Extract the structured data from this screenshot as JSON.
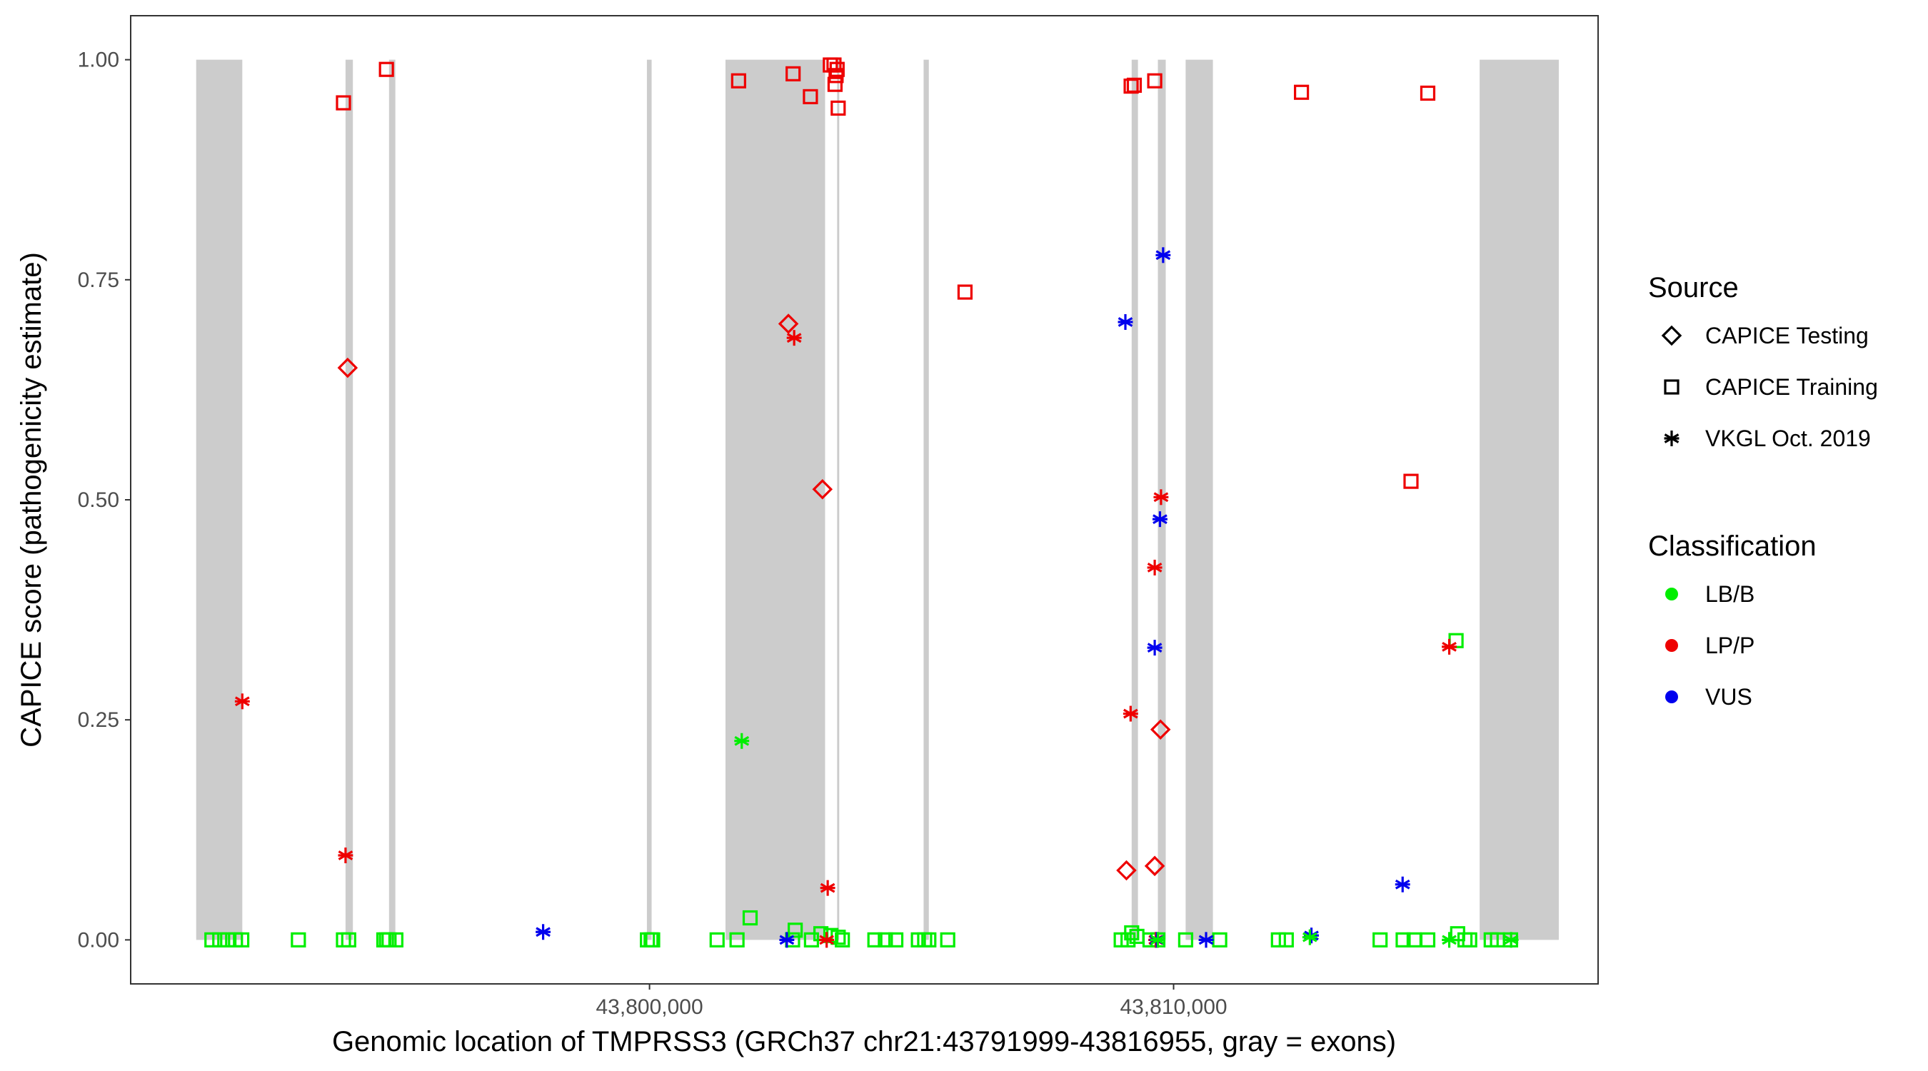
{
  "chart_data": {
    "type": "scatter",
    "xlabel": "Genomic location of TMPRSS3 (GRCh37 chr21:43791999-43816955, gray = exons)",
    "ylabel": "CAPICE score (pathogenicity estimate)",
    "xlim": [
      43790100,
      43818100
    ],
    "ylim": [
      -0.05,
      1.05
    ],
    "x_ticks": [
      43800000,
      43810000
    ],
    "x_tick_labels": [
      "43,800,000",
      "43,810,000"
    ],
    "y_ticks": [
      0,
      0.25,
      0.5,
      0.75,
      1.0
    ],
    "y_tick_labels": [
      "0.00",
      "0.25",
      "0.50",
      "0.75",
      "1.00"
    ],
    "grid": false,
    "legend_position": "right",
    "exons": [
      [
        43791350,
        43792230
      ],
      [
        43794200,
        43794340
      ],
      [
        43795030,
        43795150
      ],
      [
        43799950,
        43800040
      ],
      [
        43801450,
        43803350
      ],
      [
        43803580,
        43803620
      ],
      [
        43805230,
        43805330
      ],
      [
        43809200,
        43809320
      ],
      [
        43809700,
        43809850
      ],
      [
        43810230,
        43810750
      ],
      [
        43815840,
        43817350
      ]
    ],
    "colors": {
      "LB/B": "#00ee00",
      "LP/P": "#ee0000",
      "VUS": "#0000ee",
      "exon": "#cccccc"
    },
    "legend": {
      "source_title": "Source",
      "source_items": [
        {
          "label": "CAPICE Testing",
          "shape": "diamond"
        },
        {
          "label": "CAPICE Training",
          "shape": "square"
        },
        {
          "label": "VKGL Oct. 2019",
          "shape": "asterisk"
        }
      ],
      "class_title": "Classification",
      "class_items": [
        {
          "label": "LB/B",
          "color": "#00ee00"
        },
        {
          "label": "LP/P",
          "color": "#ee0000"
        },
        {
          "label": "VUS",
          "color": "#0000ee"
        }
      ]
    },
    "series": [
      {
        "name": "CAPICE Training · LP/P",
        "shape": "square",
        "color": "#ee0000",
        "x": [
          43794160,
          43794980,
          43801700,
          43802740,
          43803070,
          43803450,
          43803520,
          43803540,
          43803560,
          43803600,
          43803580,
          43806020,
          43809190,
          43809250,
          43809640,
          43812440,
          43814850,
          43814530
        ],
        "y": [
          0.951,
          0.989,
          0.976,
          0.984,
          0.958,
          0.994,
          0.994,
          0.972,
          0.982,
          0.945,
          0.989,
          0.736,
          0.97,
          0.971,
          0.976,
          0.963,
          0.962,
          0.521
        ]
      },
      {
        "name": "CAPICE Training · LB/B",
        "shape": "square",
        "color": "#00ee00",
        "x": [
          43800030,
          43801920,
          43803600,
          43815390,
          43791650,
          43791800,
          43791950,
          43792100,
          43792220,
          43793300,
          43794160,
          43794260,
          43794930,
          43794980,
          43795030,
          43795160,
          43799960,
          43800060,
          43801290,
          43801670,
          43802730,
          43802780,
          43803090,
          43803270,
          43803460,
          43803680,
          43804300,
          43804500,
          43804700,
          43805130,
          43805250,
          43805330,
          43805690,
          43809000,
          43809130,
          43809200,
          43809300,
          43809550,
          43809700,
          43810230,
          43810880,
          43812000,
          43812150,
          43813940,
          43814380,
          43814590,
          43814850,
          43815420,
          43815560,
          43815650,
          43816060,
          43816180,
          43816430
        ],
        "y": [
          0.0,
          0.025,
          0.003,
          0.34,
          0.0,
          0.0,
          0.0,
          0.0,
          0.0,
          0.0,
          0.0,
          0.0,
          0.0,
          0.0,
          0.0,
          0.0,
          0.0,
          0.0,
          0.0,
          0.0,
          0.0,
          0.011,
          0.0,
          0.007,
          0.005,
          0.0,
          0.0,
          0.0,
          0.0,
          0.0,
          0.0,
          0.0,
          0.0,
          0.0,
          0.0,
          0.008,
          0.004,
          0.0,
          0.0,
          0.0,
          0.0,
          0.0,
          0.0,
          0.0,
          0.0,
          0.0,
          0.0,
          0.007,
          0.0,
          0.0,
          0.0,
          0.0,
          0.0
        ]
      },
      {
        "name": "CAPICE Testing · LP/P",
        "shape": "diamond",
        "color": "#ee0000",
        "x": [
          43794240,
          43802650,
          43803300,
          43809100,
          43809640,
          43809750
        ],
        "y": [
          0.65,
          0.7,
          0.512,
          0.079,
          0.084,
          0.239
        ]
      },
      {
        "name": "VKGL Oct. 2019 · LP/P",
        "shape": "asterisk",
        "color": "#ee0000",
        "x": [
          43792230,
          43794200,
          43802760,
          43803400,
          43809180,
          43809640,
          43809760,
          43815260,
          43803380,
          43809660
        ],
        "y": [
          0.271,
          0.096,
          0.684,
          0.059,
          0.257,
          0.423,
          0.503,
          0.333,
          0.0,
          0.0
        ]
      },
      {
        "name": "VKGL Oct. 2019 · VUS",
        "shape": "asterisk",
        "color": "#0000ee",
        "x": [
          43797970,
          43802620,
          43809080,
          43809640,
          43809740,
          43809800,
          43810620,
          43812630,
          43814370,
          43809680
        ],
        "y": [
          0.009,
          0.0,
          0.702,
          0.332,
          0.478,
          0.778,
          0.0,
          0.005,
          0.063,
          0.0
        ]
      },
      {
        "name": "VKGL Oct. 2019 · LB/B",
        "shape": "asterisk",
        "color": "#00ee00",
        "x": [
          43801760,
          43812600,
          43815260,
          43816440,
          43809700
        ],
        "y": [
          0.226,
          0.003,
          0.0,
          0.0,
          0.0
        ]
      }
    ]
  }
}
